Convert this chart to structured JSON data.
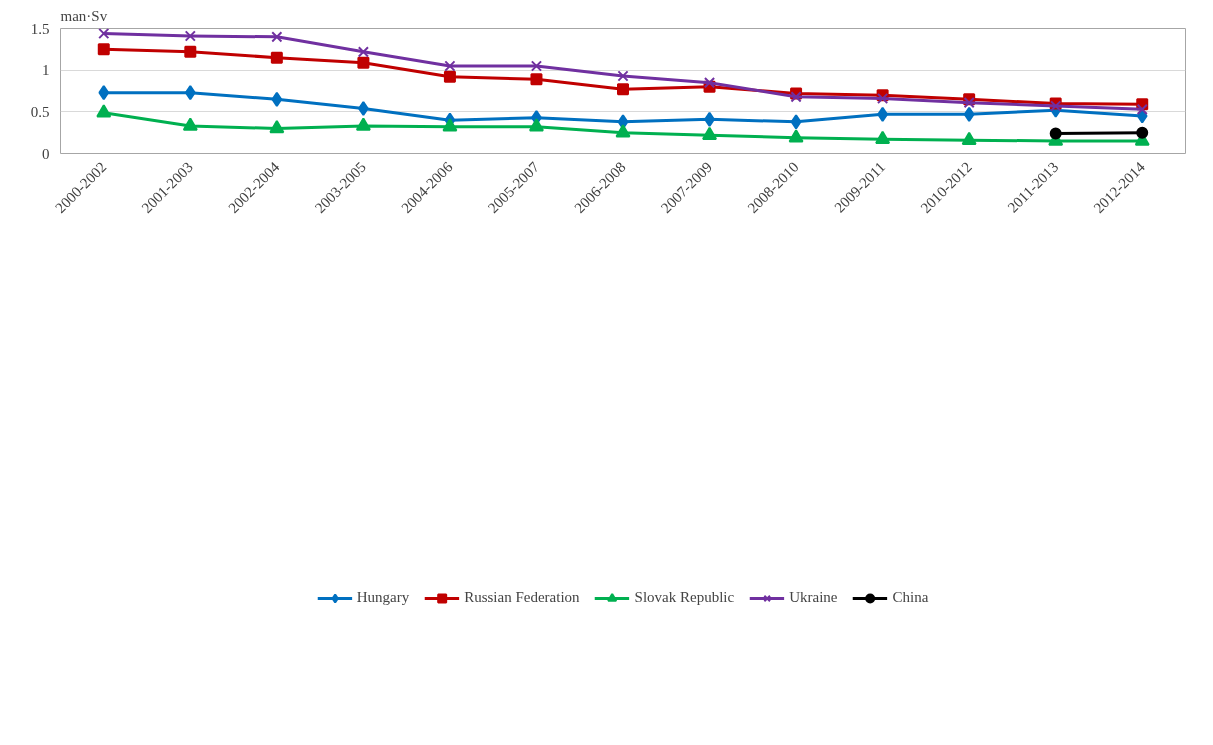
{
  "chart_data": {
    "type": "line",
    "ylabel": "man·Sv",
    "categories": [
      "2000-2002",
      "2001-2003",
      "2002-2004",
      "2003-2005",
      "2004-2006",
      "2005-2007",
      "2006-2008",
      "2007-2009",
      "2008-2010",
      "2009-2011",
      "2010-2012",
      "2011-2013",
      "2012-2014"
    ],
    "series": [
      {
        "name": "Hungary",
        "color": "#0070c0",
        "marker": "diamond",
        "values": [
          0.73,
          0.73,
          0.65,
          0.54,
          0.4,
          0.43,
          0.38,
          0.41,
          0.38,
          0.47,
          0.47,
          0.52,
          0.45
        ]
      },
      {
        "name": "Russian Federation",
        "color": "#c00000",
        "marker": "square",
        "values": [
          1.25,
          1.22,
          1.15,
          1.09,
          0.92,
          0.89,
          0.77,
          0.8,
          0.72,
          0.7,
          0.65,
          0.6,
          0.59
        ]
      },
      {
        "name": "Slovak Republic",
        "color": "#00b050",
        "marker": "triangle",
        "values": [
          0.49,
          0.33,
          0.3,
          0.33,
          0.32,
          0.32,
          0.25,
          0.22,
          0.19,
          0.17,
          0.16,
          0.15,
          0.15
        ]
      },
      {
        "name": "Ukraine",
        "color": "#7030a0",
        "marker": "cross",
        "values": [
          1.44,
          1.41,
          1.4,
          1.22,
          1.05,
          1.05,
          0.93,
          0.85,
          0.68,
          0.66,
          0.61,
          0.57,
          0.53
        ]
      },
      {
        "name": "China",
        "color": "#000000",
        "marker": "circle",
        "values": [
          null,
          null,
          null,
          null,
          null,
          null,
          null,
          null,
          null,
          null,
          null,
          0.24,
          0.25
        ]
      }
    ],
    "ylim": [
      0,
      1.5
    ],
    "yticks": [
      0,
      0.5,
      1,
      1.5
    ],
    "grid": "y",
    "legend": "bottom",
    "line_style": "solid"
  }
}
